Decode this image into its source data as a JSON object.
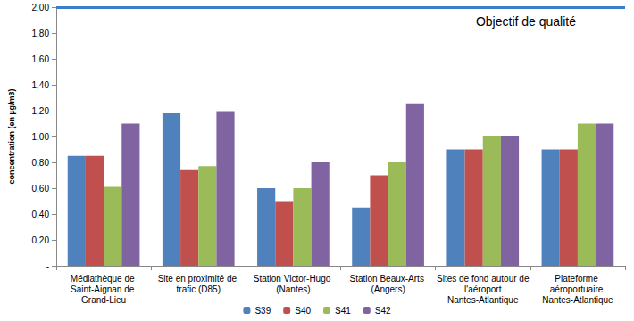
{
  "chart_data": {
    "type": "bar",
    "y_label": "concentration (en µg/m3)",
    "categories": [
      "Médiathèque de Saint-Aignan de Grand-Lieu",
      "Site en proximité de trafic (D85)",
      "Station Victor-Hugo (Nantes)",
      "Station Beaux-Arts (Angers)",
      "Sites de fond autour de l'aéroport Nantes-Atlantique",
      "Plateforme aéroportuaire Nantes-Atlantique"
    ],
    "series": [
      {
        "name": "S39",
        "color": "#4f81bd",
        "values": [
          0.85,
          1.18,
          0.6,
          0.45,
          0.9,
          0.9
        ]
      },
      {
        "name": "S40",
        "color": "#c0504d",
        "values": [
          0.85,
          0.74,
          0.5,
          0.7,
          0.9,
          0.9
        ]
      },
      {
        "name": "S41",
        "color": "#9bbb59",
        "values": [
          0.61,
          0.77,
          0.6,
          0.8,
          1.0,
          1.1
        ]
      },
      {
        "name": "S42",
        "color": "#8064a2",
        "values": [
          1.1,
          1.19,
          0.8,
          1.25,
          1.0,
          1.1
        ]
      }
    ],
    "annotations": [
      {
        "text": "Objectif de qualité",
        "y": 2.0,
        "color": "#3d7cc9"
      }
    ],
    "ylim": [
      0,
      2.0
    ],
    "yticks": [
      {
        "value": 0,
        "label": "-"
      },
      {
        "value": 0.2,
        "label": "0,20"
      },
      {
        "value": 0.4,
        "label": "0,40"
      },
      {
        "value": 0.6,
        "label": "0,60"
      },
      {
        "value": 0.8,
        "label": "0,80"
      },
      {
        "value": 1.0,
        "label": "1,00"
      },
      {
        "value": 1.2,
        "label": "1,20"
      },
      {
        "value": 1.4,
        "label": "1,40"
      },
      {
        "value": 1.6,
        "label": "1,60"
      },
      {
        "value": 1.8,
        "label": "1,80"
      },
      {
        "value": 2.0,
        "label": "2,00"
      }
    ],
    "grid": false,
    "legend": "bottom"
  }
}
